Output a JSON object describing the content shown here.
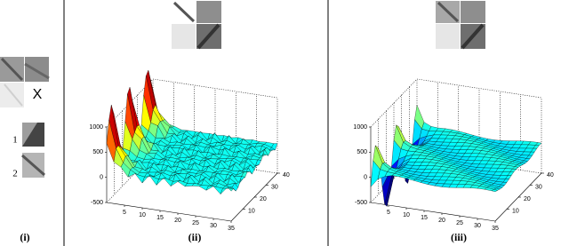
{
  "panels": [
    {
      "label": "(i)",
      "symbol": "X",
      "patch_numbers": [
        "1",
        "2"
      ]
    },
    {
      "label": "(ii)",
      "zticks": [
        1000,
        500,
        0,
        -500
      ],
      "xticks": [
        5,
        10,
        15,
        20,
        25,
        30,
        35
      ],
      "yticks": [
        10,
        20,
        30,
        40
      ]
    },
    {
      "label": "(iii)",
      "zticks": [
        1000,
        500,
        0,
        -500
      ],
      "xticks": [
        5,
        10,
        15,
        20,
        25,
        30,
        35
      ],
      "yticks": [
        10,
        20,
        30,
        40
      ]
    }
  ]
}
